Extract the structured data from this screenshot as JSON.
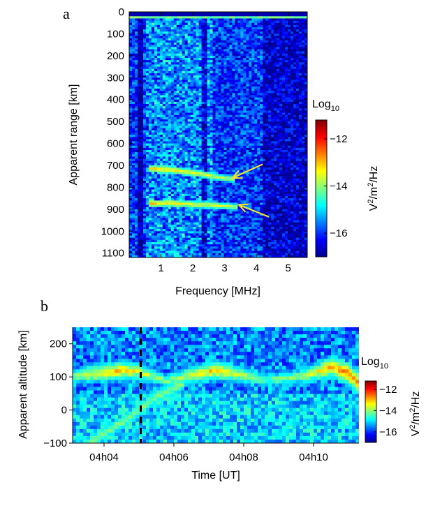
{
  "colors": {
    "colormap": [
      "#00008f",
      "#0000ff",
      "#0080ff",
      "#00ffff",
      "#80ff80",
      "#ffff00",
      "#ff8000",
      "#ff0000",
      "#800000"
    ],
    "arrow": "#f2e12a",
    "dashed_line": "#000000"
  },
  "chart_data": [
    {
      "panel": "a",
      "type": "heatmap",
      "xlabel": "Frequency [MHz]",
      "ylabel": "Apparent range [km]",
      "xlim": [
        0,
        5.6
      ],
      "ylim": [
        1120,
        0
      ],
      "xticks": [
        1,
        2,
        3,
        4,
        5
      ],
      "yticks": [
        0,
        100,
        200,
        300,
        400,
        500,
        600,
        700,
        800,
        900,
        1000,
        1100
      ],
      "background_level": -16,
      "echo_traces": [
        {
          "points": [
            [
              0.6,
              715
            ],
            [
              1.3,
              720
            ],
            [
              2.2,
              738
            ],
            [
              3.0,
              758
            ],
            [
              3.3,
              762
            ]
          ],
          "peak_level": -13
        },
        {
          "points": [
            [
              0.6,
              875
            ],
            [
              1.3,
              872
            ],
            [
              2.2,
              880
            ],
            [
              3.0,
              885
            ],
            [
              3.4,
              890
            ]
          ],
          "peak_level": -13
        }
      ],
      "arrows": [
        {
          "tip": [
            3.25,
            757
          ],
          "tail": [
            4.2,
            695
          ]
        },
        {
          "tip": [
            3.45,
            880
          ],
          "tail": [
            4.4,
            935
          ]
        }
      ],
      "colorbar": {
        "title": "Log",
        "title_sub": "10",
        "label_parts": [
          "V",
          "2",
          "/m",
          "2",
          "/Hz"
        ],
        "range": [
          -17,
          -11.2
        ],
        "ticks": [
          -12,
          -14,
          -16
        ]
      }
    },
    {
      "panel": "b",
      "type": "heatmap",
      "xlabel": "Time [UT]",
      "ylabel": "Apparent altitude [km]",
      "xlim": [
        3.1,
        11.3
      ],
      "ylim": [
        -100,
        250
      ],
      "xticks": [
        4,
        6,
        8,
        10
      ],
      "xtick_labels": [
        "04h04",
        "04h06",
        "04h08",
        "04h10"
      ],
      "yticks": [
        -100,
        0,
        100,
        200
      ],
      "background_level": -15.5,
      "echo_layer": [
        {
          "t": 3.1,
          "alt": 100,
          "level": -14
        },
        {
          "t": 3.5,
          "alt": 108,
          "level": -13.5
        },
        {
          "t": 4.0,
          "alt": 112,
          "level": -13.2
        },
        {
          "t": 4.5,
          "alt": 120,
          "level": -13
        },
        {
          "t": 5.0,
          "alt": 115,
          "level": -13.5
        },
        {
          "t": 5.8,
          "alt": 88,
          "level": -14
        },
        {
          "t": 6.5,
          "alt": 105,
          "level": -13.5
        },
        {
          "t": 7.2,
          "alt": 120,
          "level": -13
        },
        {
          "t": 7.8,
          "alt": 110,
          "level": -13.5
        },
        {
          "t": 8.5,
          "alt": 90,
          "level": -14.2
        },
        {
          "t": 9.3,
          "alt": 95,
          "level": -14
        },
        {
          "t": 10.0,
          "alt": 110,
          "level": -13.5
        },
        {
          "t": 10.5,
          "alt": 130,
          "level": -12.8
        },
        {
          "t": 11.0,
          "alt": 110,
          "level": -12.5
        },
        {
          "t": 11.3,
          "alt": 80,
          "level": -12.8
        }
      ],
      "ground_track": [
        {
          "t": 3.6,
          "alt": -95
        },
        {
          "t": 4.5,
          "alt": -40
        },
        {
          "t": 5.5,
          "alt": 40
        },
        {
          "t": 6.3,
          "alt": 80
        }
      ],
      "dashed_time": 5.05,
      "colorbar": {
        "title": "Log",
        "title_sub": "10",
        "label_parts": [
          "V",
          "2",
          "/m",
          "2",
          "/Hz"
        ],
        "range": [
          -17,
          -11.2
        ],
        "ticks": [
          -12,
          -14,
          -16
        ]
      }
    }
  ],
  "panel_letters": [
    "a",
    "b"
  ]
}
